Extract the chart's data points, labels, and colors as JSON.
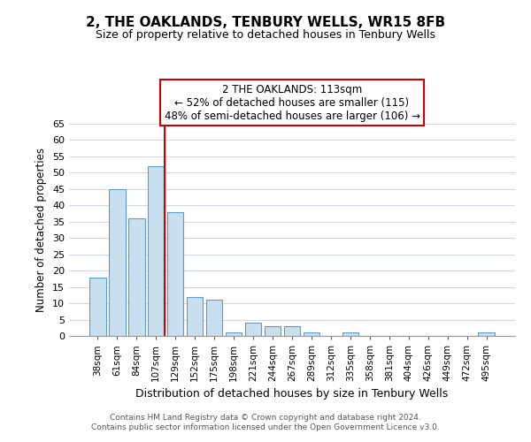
{
  "title": "2, THE OAKLANDS, TENBURY WELLS, WR15 8FB",
  "subtitle": "Size of property relative to detached houses in Tenbury Wells",
  "xlabel": "Distribution of detached houses by size in Tenbury Wells",
  "ylabel": "Number of detached properties",
  "bar_color": "#c8dff0",
  "bar_edge_color": "#5a9ec9",
  "highlight_line_color": "#cc0000",
  "categories": [
    "38sqm",
    "61sqm",
    "84sqm",
    "107sqm",
    "129sqm",
    "152sqm",
    "175sqm",
    "198sqm",
    "221sqm",
    "244sqm",
    "267sqm",
    "289sqm",
    "312sqm",
    "335sqm",
    "358sqm",
    "381sqm",
    "404sqm",
    "426sqm",
    "449sqm",
    "472sqm",
    "495sqm"
  ],
  "values": [
    18,
    45,
    36,
    52,
    38,
    12,
    11,
    1,
    4,
    3,
    3,
    1,
    0,
    1,
    0,
    0,
    0,
    0,
    0,
    0,
    1
  ],
  "highlight_index": 3,
  "ylim": [
    0,
    65
  ],
  "yticks": [
    0,
    5,
    10,
    15,
    20,
    25,
    30,
    35,
    40,
    45,
    50,
    55,
    60,
    65
  ],
  "annotation_title": "2 THE OAKLANDS: 113sqm",
  "annotation_line1": "← 52% of detached houses are smaller (115)",
  "annotation_line2": "48% of semi-detached houses are larger (106) →",
  "footer_line1": "Contains HM Land Registry data © Crown copyright and database right 2024.",
  "footer_line2": "Contains public sector information licensed under the Open Government Licence v3.0.",
  "background_color": "#ffffff",
  "grid_color": "#d0d8e8"
}
